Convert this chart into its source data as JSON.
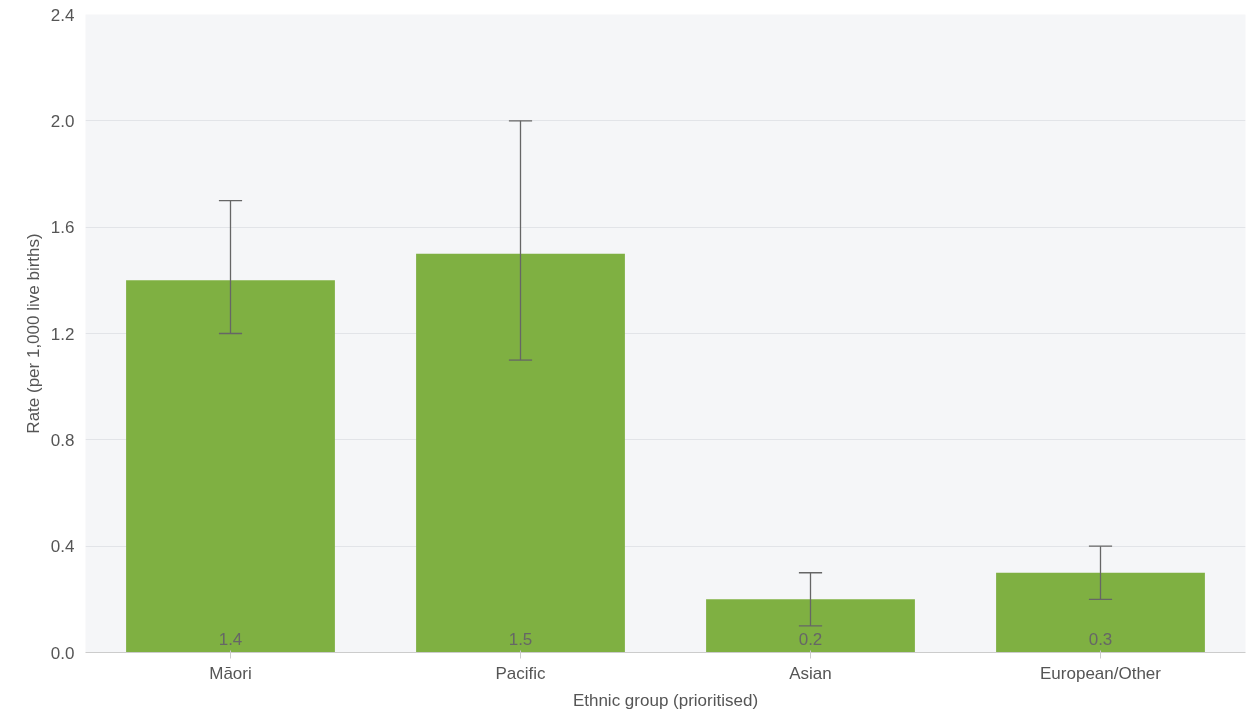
{
  "chart_data": {
    "type": "bar",
    "xlabel": "Ethnic group (prioritised)",
    "ylabel": "Rate (per 1,000 live births)",
    "categories": [
      "Māori",
      "Pacific",
      "Asian",
      "European/Other"
    ],
    "values": [
      1.4,
      1.5,
      0.2,
      0.3
    ],
    "errors": [
      [
        1.2,
        1.7
      ],
      [
        1.1,
        2.0
      ],
      [
        0.1,
        0.3
      ],
      [
        0.2,
        0.4
      ]
    ],
    "color": "#7fb042",
    "ylim": [
      0,
      2.4
    ],
    "yticks": [
      {
        "value": 0,
        "label": "0.0"
      },
      0.4,
      0.8,
      1.2,
      1.6,
      {
        "value": 2,
        "label": "2.0"
      },
      2.4
    ],
    "grid": "y",
    "data_labels": true
  }
}
